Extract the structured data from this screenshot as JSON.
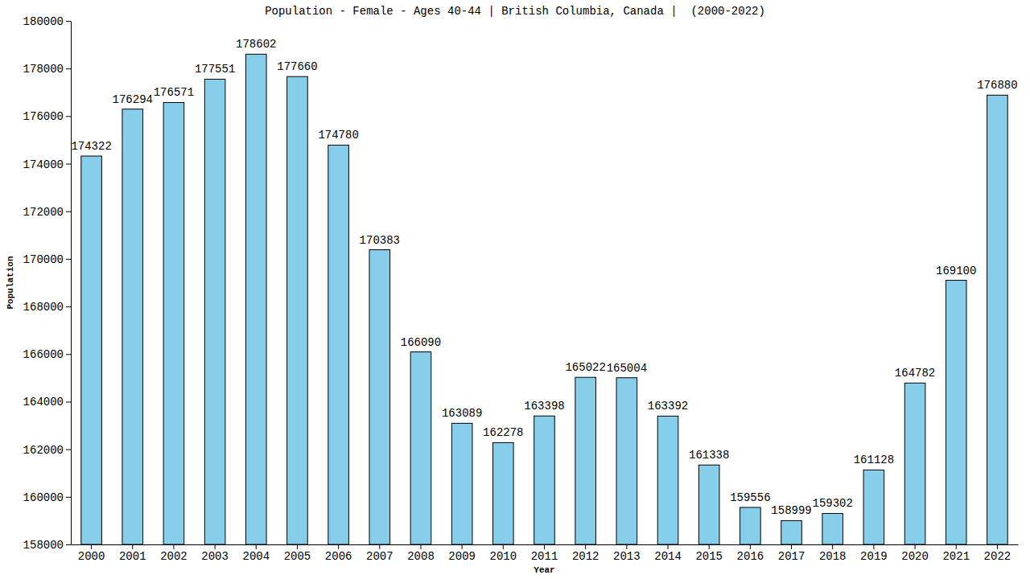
{
  "chart_data": {
    "type": "bar",
    "title": "Population - Female - Ages 40-44 | British Columbia, Canada |  (2000-2022)",
    "x_label": "Year",
    "y_label": "Population",
    "categories": [
      "2000",
      "2001",
      "2002",
      "2003",
      "2004",
      "2005",
      "2006",
      "2007",
      "2008",
      "2009",
      "2010",
      "2011",
      "2012",
      "2013",
      "2014",
      "2015",
      "2016",
      "2017",
      "2018",
      "2019",
      "2020",
      "2021",
      "2022"
    ],
    "values": [
      174322,
      176294,
      176571,
      177551,
      178602,
      177660,
      174780,
      170383,
      166090,
      163089,
      162278,
      163398,
      165022,
      165004,
      163392,
      161338,
      159556,
      158999,
      159302,
      161128,
      164782,
      169100,
      176880
    ],
    "color": "#87ceeb",
    "ylim": [
      158000,
      180000
    ],
    "yticks": [
      158000,
      160000,
      162000,
      164000,
      166000,
      168000,
      170000,
      172000,
      174000,
      176000,
      178000,
      180000
    ],
    "data_labels": true,
    "grid": false
  }
}
